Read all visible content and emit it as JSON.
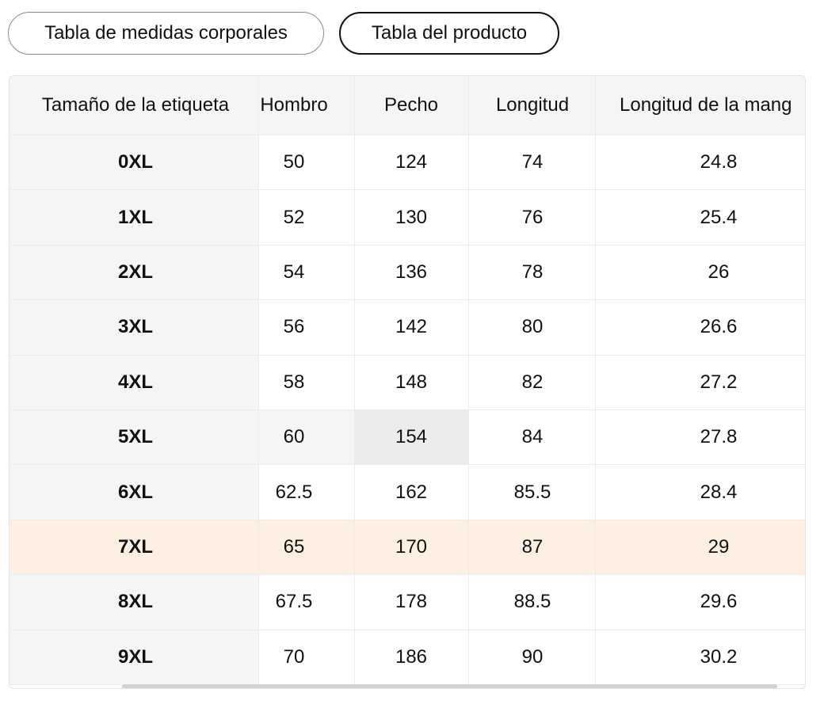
{
  "tabs": [
    "Tabla de medidas corporales",
    "Tabla del producto"
  ],
  "table": {
    "headers": [
      "Tamaño de la etiqueta",
      "Hombro",
      "Pecho",
      "Longitud",
      "Longitud de la mang"
    ],
    "rows": [
      [
        "0XL",
        "50",
        "124",
        "74",
        "24.8"
      ],
      [
        "1XL",
        "52",
        "130",
        "76",
        "25.4"
      ],
      [
        "2XL",
        "54",
        "136",
        "78",
        "26"
      ],
      [
        "3XL",
        "56",
        "142",
        "80",
        "26.6"
      ],
      [
        "4XL",
        "58",
        "148",
        "82",
        "27.2"
      ],
      [
        "5XL",
        "60",
        "154",
        "84",
        "27.8"
      ],
      [
        "6XL",
        "62.5",
        "162",
        "85.5",
        "28.4"
      ],
      [
        "7XL",
        "65",
        "170",
        "87",
        "29"
      ],
      [
        "8XL",
        "67.5",
        "178",
        "88.5",
        "29.6"
      ],
      [
        "9XL",
        "70",
        "186",
        "90",
        "30.2"
      ]
    ]
  }
}
